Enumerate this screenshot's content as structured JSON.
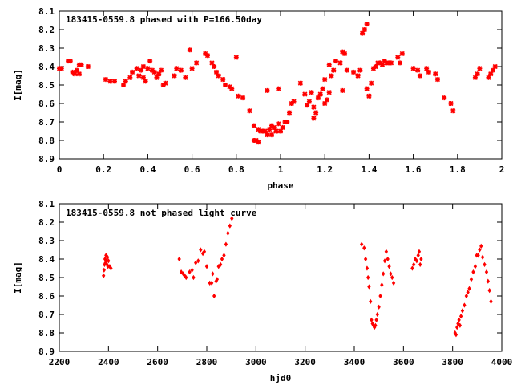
{
  "chart_data": [
    {
      "type": "scatter",
      "title": "183415-0559.8 phased with P=166.50day",
      "xlabel": "phase",
      "ylabel": "I[mag]",
      "xlim": [
        0,
        2
      ],
      "ylim": [
        8.9,
        8.1
      ],
      "y_inverted": true,
      "grid": false,
      "legend": "none",
      "marker": "cross",
      "color": "#ff0000",
      "xticks": [
        "0",
        "0.2",
        "0.4",
        "0.6",
        "0.8",
        "1",
        "1.2",
        "1.4",
        "1.6",
        "1.8",
        "2"
      ],
      "xtick_values": [
        0,
        0.2,
        0.4,
        0.6,
        0.8,
        1.0,
        1.2,
        1.4,
        1.6,
        1.8,
        2.0
      ],
      "yticks": [
        "8.1",
        "8.2",
        "8.3",
        "8.4",
        "8.5",
        "8.6",
        "8.7",
        "8.8",
        "8.9"
      ],
      "ytick_values": [
        8.1,
        8.2,
        8.3,
        8.4,
        8.5,
        8.6,
        8.7,
        8.8,
        8.9
      ],
      "points": [
        [
          0.0,
          8.41
        ],
        [
          0.01,
          8.41
        ],
        [
          0.04,
          8.37
        ],
        [
          0.05,
          8.37
        ],
        [
          0.06,
          8.43
        ],
        [
          0.07,
          8.44
        ],
        [
          0.08,
          8.42
        ],
        [
          0.09,
          8.44
        ],
        [
          0.09,
          8.39
        ],
        [
          0.1,
          8.39
        ],
        [
          0.13,
          8.4
        ],
        [
          0.21,
          8.47
        ],
        [
          0.23,
          8.48
        ],
        [
          0.25,
          8.48
        ],
        [
          0.29,
          8.5
        ],
        [
          0.3,
          8.48
        ],
        [
          0.32,
          8.46
        ],
        [
          0.33,
          8.43
        ],
        [
          0.35,
          8.41
        ],
        [
          0.36,
          8.45
        ],
        [
          0.37,
          8.42
        ],
        [
          0.38,
          8.4
        ],
        [
          0.38,
          8.46
        ],
        [
          0.39,
          8.48
        ],
        [
          0.4,
          8.41
        ],
        [
          0.41,
          8.37
        ],
        [
          0.42,
          8.42
        ],
        [
          0.43,
          8.43
        ],
        [
          0.44,
          8.46
        ],
        [
          0.45,
          8.44
        ],
        [
          0.46,
          8.42
        ],
        [
          0.47,
          8.5
        ],
        [
          0.48,
          8.49
        ],
        [
          0.52,
          8.45
        ],
        [
          0.53,
          8.41
        ],
        [
          0.55,
          8.42
        ],
        [
          0.57,
          8.46
        ],
        [
          0.59,
          8.31
        ],
        [
          0.6,
          8.41
        ],
        [
          0.62,
          8.38
        ],
        [
          0.66,
          8.33
        ],
        [
          0.67,
          8.34
        ],
        [
          0.69,
          8.38
        ],
        [
          0.7,
          8.4
        ],
        [
          0.71,
          8.43
        ],
        [
          0.72,
          8.45
        ],
        [
          0.74,
          8.47
        ],
        [
          0.75,
          8.5
        ],
        [
          0.77,
          8.51
        ],
        [
          0.78,
          8.52
        ],
        [
          0.8,
          8.35
        ],
        [
          0.81,
          8.56
        ],
        [
          0.83,
          8.57
        ],
        [
          0.86,
          8.64
        ],
        [
          0.88,
          8.72
        ],
        [
          0.88,
          8.8
        ],
        [
          0.89,
          8.8
        ],
        [
          0.9,
          8.81
        ],
        [
          0.9,
          8.74
        ],
        [
          0.91,
          8.75
        ],
        [
          0.92,
          8.75
        ],
        [
          0.93,
          8.75
        ],
        [
          0.94,
          8.77
        ],
        [
          0.94,
          8.53
        ],
        [
          0.95,
          8.74
        ],
        [
          0.96,
          8.72
        ],
        [
          0.96,
          8.77
        ],
        [
          0.97,
          8.73
        ],
        [
          0.98,
          8.75
        ],
        [
          0.99,
          8.71
        ],
        [
          0.99,
          8.52
        ],
        [
          1.0,
          8.75
        ],
        [
          1.01,
          8.73
        ],
        [
          1.02,
          8.7
        ],
        [
          1.03,
          8.7
        ],
        [
          1.04,
          8.65
        ],
        [
          1.05,
          8.6
        ],
        [
          1.06,
          8.59
        ],
        [
          1.09,
          8.49
        ],
        [
          1.11,
          8.55
        ],
        [
          1.12,
          8.61
        ],
        [
          1.13,
          8.59
        ],
        [
          1.14,
          8.54
        ],
        [
          1.15,
          8.62
        ],
        [
          1.15,
          8.68
        ],
        [
          1.16,
          8.65
        ],
        [
          1.17,
          8.57
        ],
        [
          1.18,
          8.55
        ],
        [
          1.19,
          8.52
        ],
        [
          1.2,
          8.47
        ],
        [
          1.2,
          8.6
        ],
        [
          1.21,
          8.58
        ],
        [
          1.22,
          8.54
        ],
        [
          1.22,
          8.39
        ],
        [
          1.23,
          8.45
        ],
        [
          1.24,
          8.42
        ],
        [
          1.25,
          8.37
        ],
        [
          1.27,
          8.38
        ],
        [
          1.28,
          8.32
        ],
        [
          1.29,
          8.33
        ],
        [
          1.28,
          8.53
        ],
        [
          1.3,
          8.42
        ],
        [
          1.33,
          8.43
        ],
        [
          1.35,
          8.45
        ],
        [
          1.36,
          8.42
        ],
        [
          1.37,
          8.22
        ],
        [
          1.38,
          8.2
        ],
        [
          1.39,
          8.17
        ],
        [
          1.39,
          8.52
        ],
        [
          1.4,
          8.56
        ],
        [
          1.41,
          8.49
        ],
        [
          1.42,
          8.41
        ],
        [
          1.43,
          8.4
        ],
        [
          1.44,
          8.38
        ],
        [
          1.45,
          8.38
        ],
        [
          1.46,
          8.39
        ],
        [
          1.47,
          8.37
        ],
        [
          1.48,
          8.38
        ],
        [
          1.49,
          8.38
        ],
        [
          1.5,
          8.38
        ],
        [
          1.53,
          8.35
        ],
        [
          1.54,
          8.38
        ],
        [
          1.55,
          8.33
        ],
        [
          1.6,
          8.41
        ],
        [
          1.62,
          8.42
        ],
        [
          1.63,
          8.45
        ],
        [
          1.66,
          8.41
        ],
        [
          1.67,
          8.43
        ],
        [
          1.7,
          8.44
        ],
        [
          1.71,
          8.47
        ],
        [
          1.74,
          8.57
        ],
        [
          1.77,
          8.6
        ],
        [
          1.78,
          8.64
        ],
        [
          1.88,
          8.46
        ],
        [
          1.89,
          8.44
        ],
        [
          1.9,
          8.41
        ],
        [
          1.94,
          8.46
        ],
        [
          1.95,
          8.44
        ],
        [
          1.96,
          8.42
        ],
        [
          1.97,
          8.4
        ]
      ]
    },
    {
      "type": "scatter",
      "title": "183415-0559.8 not phased light curve",
      "xlabel": "hjd0",
      "ylabel": "I[mag]",
      "xlim": [
        2200,
        4000
      ],
      "ylim": [
        8.9,
        8.1
      ],
      "y_inverted": true,
      "grid": false,
      "legend": "none",
      "marker": "diamond",
      "color": "#ff0000",
      "xticks": [
        "2200",
        "2400",
        "2600",
        "2800",
        "3000",
        "3200",
        "3400",
        "3600",
        "3800",
        "4000"
      ],
      "xtick_values": [
        2200,
        2400,
        2600,
        2800,
        3000,
        3200,
        3400,
        3600,
        3800,
        4000
      ],
      "yticks": [
        "8.1",
        "8.2",
        "8.3",
        "8.4",
        "8.5",
        "8.6",
        "8.7",
        "8.8",
        "8.9"
      ],
      "ytick_values": [
        8.1,
        8.2,
        8.3,
        8.4,
        8.5,
        8.6,
        8.7,
        8.8,
        8.9
      ],
      "points": [
        [
          2380,
          8.49
        ],
        [
          2382,
          8.46
        ],
        [
          2384,
          8.43
        ],
        [
          2386,
          8.4
        ],
        [
          2388,
          8.42
        ],
        [
          2390,
          8.38
        ],
        [
          2392,
          8.41
        ],
        [
          2394,
          8.43
        ],
        [
          2396,
          8.39
        ],
        [
          2398,
          8.44
        ],
        [
          2400,
          8.41
        ],
        [
          2405,
          8.44
        ],
        [
          2410,
          8.45
        ],
        [
          2688,
          8.4
        ],
        [
          2696,
          8.47
        ],
        [
          2704,
          8.48
        ],
        [
          2710,
          8.49
        ],
        [
          2716,
          8.5
        ],
        [
          2730,
          8.47
        ],
        [
          2740,
          8.46
        ],
        [
          2746,
          8.5
        ],
        [
          2755,
          8.42
        ],
        [
          2765,
          8.41
        ],
        [
          2775,
          8.35
        ],
        [
          2784,
          8.37
        ],
        [
          2790,
          8.36
        ],
        [
          2800,
          8.44
        ],
        [
          2812,
          8.53
        ],
        [
          2820,
          8.53
        ],
        [
          2824,
          8.48
        ],
        [
          2830,
          8.6
        ],
        [
          2838,
          8.52
        ],
        [
          2842,
          8.51
        ],
        [
          2848,
          8.44
        ],
        [
          2856,
          8.43
        ],
        [
          2862,
          8.4
        ],
        [
          2870,
          8.38
        ],
        [
          2878,
          8.32
        ],
        [
          2886,
          8.26
        ],
        [
          2894,
          8.22
        ],
        [
          2902,
          8.18
        ],
        [
          3430,
          8.32
        ],
        [
          3440,
          8.34
        ],
        [
          3446,
          8.4
        ],
        [
          3452,
          8.45
        ],
        [
          3456,
          8.5
        ],
        [
          3460,
          8.55
        ],
        [
          3466,
          8.63
        ],
        [
          3470,
          8.73
        ],
        [
          3474,
          8.75
        ],
        [
          3478,
          8.76
        ],
        [
          3482,
          8.77
        ],
        [
          3486,
          8.76
        ],
        [
          3490,
          8.73
        ],
        [
          3494,
          8.7
        ],
        [
          3500,
          8.66
        ],
        [
          3506,
          8.6
        ],
        [
          3512,
          8.54
        ],
        [
          3518,
          8.48
        ],
        [
          3524,
          8.41
        ],
        [
          3530,
          8.36
        ],
        [
          3536,
          8.4
        ],
        [
          3542,
          8.44
        ],
        [
          3548,
          8.48
        ],
        [
          3554,
          8.5
        ],
        [
          3560,
          8.53
        ],
        [
          3636,
          8.45
        ],
        [
          3642,
          8.43
        ],
        [
          3648,
          8.4
        ],
        [
          3654,
          8.41
        ],
        [
          3660,
          8.38
        ],
        [
          3664,
          8.36
        ],
        [
          3668,
          8.43
        ],
        [
          3672,
          8.4
        ],
        [
          3810,
          8.8
        ],
        [
          3814,
          8.81
        ],
        [
          3818,
          8.77
        ],
        [
          3822,
          8.75
        ],
        [
          3826,
          8.73
        ],
        [
          3830,
          8.76
        ],
        [
          3834,
          8.71
        ],
        [
          3840,
          8.68
        ],
        [
          3848,
          8.65
        ],
        [
          3856,
          8.6
        ],
        [
          3862,
          8.58
        ],
        [
          3868,
          8.56
        ],
        [
          3876,
          8.51
        ],
        [
          3884,
          8.47
        ],
        [
          3892,
          8.44
        ],
        [
          3898,
          8.38
        ],
        [
          3904,
          8.38
        ],
        [
          3910,
          8.35
        ],
        [
          3916,
          8.33
        ],
        [
          3922,
          8.39
        ],
        [
          3930,
          8.43
        ],
        [
          3938,
          8.47
        ],
        [
          3944,
          8.52
        ],
        [
          3950,
          8.57
        ],
        [
          3956,
          8.63
        ]
      ]
    }
  ]
}
